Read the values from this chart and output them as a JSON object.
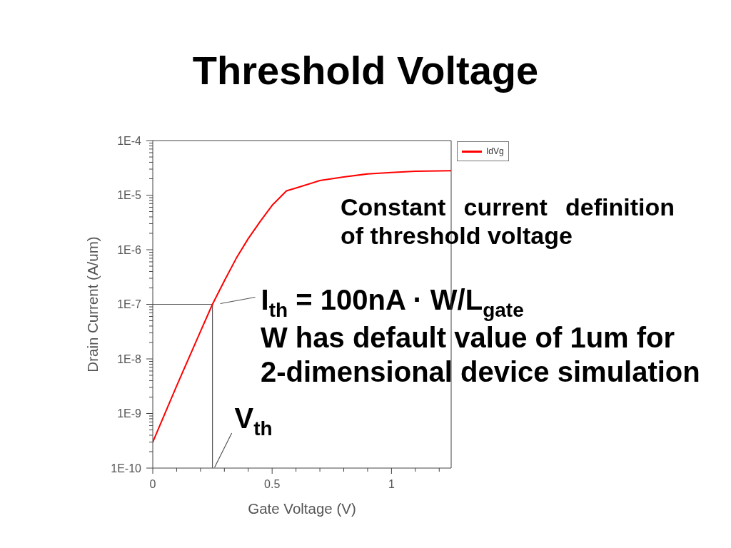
{
  "chart_data": {
    "type": "line",
    "title": "Threshold Voltage",
    "xlabel": "Gate Voltage (V)",
    "ylabel": "Drain Current (A/um)",
    "x": [
      0,
      0.1,
      0.2,
      0.25,
      0.3,
      0.35,
      0.4,
      0.45,
      0.5,
      0.56,
      0.6,
      0.7,
      0.8,
      0.9,
      1.0,
      1.1,
      1.25
    ],
    "series": [
      {
        "name": "IdVg",
        "color": "#ff0000",
        "values": [
          3e-10,
          3.2e-09,
          3.2e-08,
          1e-07,
          2.7e-07,
          7e-07,
          1.6e-06,
          3.3e-06,
          6.5e-06,
          1.2e-05,
          1.35e-05,
          1.85e-05,
          2.15e-05,
          2.45e-05,
          2.6e-05,
          2.75e-05,
          2.8e-05
        ]
      }
    ],
    "xlim": [
      0,
      1.25
    ],
    "xticks": [
      0,
      {
        "value": 0.1,
        "label": null
      },
      {
        "value": 0.2,
        "label": null
      },
      {
        "value": 0.3,
        "label": null
      },
      {
        "value": 0.4,
        "label": null
      },
      0.5,
      {
        "value": 0.6,
        "label": null
      },
      {
        "value": 0.7,
        "label": null
      },
      {
        "value": 0.8,
        "label": null
      },
      {
        "value": 0.9,
        "label": null
      },
      1,
      {
        "value": 1.1,
        "label": null
      },
      {
        "value": 1.2,
        "label": null
      }
    ],
    "ylim": [
      1e-10,
      0.0001
    ],
    "yticks": [
      {
        "value": 1e-10,
        "label": "1E-10"
      },
      {
        "value": 2e-10,
        "label": null
      },
      {
        "value": 3e-10,
        "label": null
      },
      {
        "value": 4e-10,
        "label": null
      },
      {
        "value": 5e-10,
        "label": null
      },
      {
        "value": 6e-10,
        "label": null
      },
      {
        "value": 7e-10,
        "label": null
      },
      {
        "value": 8e-10,
        "label": null
      },
      {
        "value": 9e-10,
        "label": null
      },
      {
        "value": 1e-09,
        "label": "1E-9"
      },
      {
        "value": 2e-09,
        "label": null
      },
      {
        "value": 3e-09,
        "label": null
      },
      {
        "value": 4e-09,
        "label": null
      },
      {
        "value": 5e-09,
        "label": null
      },
      {
        "value": 6e-09,
        "label": null
      },
      {
        "value": 7e-09,
        "label": null
      },
      {
        "value": 8e-09,
        "label": null
      },
      {
        "value": 9e-09,
        "label": null
      },
      {
        "value": 1e-08,
        "label": "1E-8"
      },
      {
        "value": 2e-08,
        "label": null
      },
      {
        "value": 3e-08,
        "label": null
      },
      {
        "value": 4e-08,
        "label": null
      },
      {
        "value": 5e-08,
        "label": null
      },
      {
        "value": 6e-08,
        "label": null
      },
      {
        "value": 7e-08,
        "label": null
      },
      {
        "value": 8e-08,
        "label": null
      },
      {
        "value": 9e-08,
        "label": null
      },
      {
        "value": 1e-07,
        "label": "1E-7"
      },
      {
        "value": 2e-07,
        "label": null
      },
      {
        "value": 3e-07,
        "label": null
      },
      {
        "value": 4e-07,
        "label": null
      },
      {
        "value": 5e-07,
        "label": null
      },
      {
        "value": 6e-07,
        "label": null
      },
      {
        "value": 7e-07,
        "label": null
      },
      {
        "value": 8e-07,
        "label": null
      },
      {
        "value": 9e-07,
        "label": null
      },
      {
        "value": 1e-06,
        "label": "1E-6"
      },
      {
        "value": 2e-06,
        "label": null
      },
      {
        "value": 3e-06,
        "label": null
      },
      {
        "value": 4e-06,
        "label": null
      },
      {
        "value": 5e-06,
        "label": null
      },
      {
        "value": 6e-06,
        "label": null
      },
      {
        "value": 7e-06,
        "label": null
      },
      {
        "value": 8e-06,
        "label": null
      },
      {
        "value": 9e-06,
        "label": null
      },
      {
        "value": 1e-05,
        "label": "1E-5"
      },
      {
        "value": 2e-05,
        "label": null
      },
      {
        "value": 3e-05,
        "label": null
      },
      {
        "value": 4e-05,
        "label": null
      },
      {
        "value": 5e-05,
        "label": null
      },
      {
        "value": 6e-05,
        "label": null
      },
      {
        "value": 7e-05,
        "label": null
      },
      {
        "value": 8e-05,
        "label": null
      },
      {
        "value": 9e-05,
        "label": null
      },
      {
        "value": 0.0001,
        "label": "1E-4"
      }
    ],
    "log": true,
    "legend": "top right",
    "ref_lines": [
      {
        "axis": "y",
        "value": 1e-07,
        "label": "I$_{th}$ = 100nA · W/L$_{gate}$",
        "color": "#555555"
      },
      {
        "axis": "x",
        "value": 0.25,
        "label": "V$_{th}$",
        "color": "#555555"
      }
    ],
    "annotations": [
      "Constant current definition of threshold voltage",
      "W has default value of 1um for 2-dimensional device simulation"
    ]
  }
}
